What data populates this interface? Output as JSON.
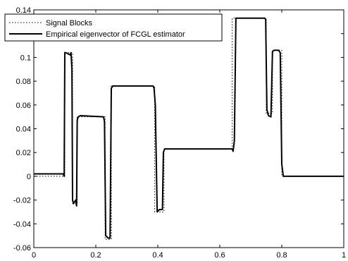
{
  "chart_data": {
    "type": "line",
    "title": "",
    "xlabel": "",
    "ylabel": "",
    "xlim": [
      0,
      1
    ],
    "ylim": [
      -0.06,
      0.14
    ],
    "x_ticks": [
      0,
      0.2,
      0.4,
      0.6,
      0.8,
      1
    ],
    "x_tick_labels": [
      "0",
      "0.2",
      "0.4",
      "0.6",
      "0.8",
      "1"
    ],
    "y_ticks": [
      -0.06,
      -0.04,
      -0.02,
      0,
      0.02,
      0.04,
      0.06,
      0.08,
      0.1,
      0.12,
      0.14
    ],
    "y_tick_labels": [
      "-0.06",
      "-0.04",
      "-0.02",
      "0",
      "0.02",
      "0.04",
      "0.06",
      "0.08",
      "0.1",
      "0.12",
      "0.14"
    ],
    "grid": false,
    "legend_position": "top-left",
    "series": [
      {
        "name": "Signal Blocks",
        "style": "dotted",
        "color": "#000000",
        "x": [
          0,
          0.1,
          0.1,
          0.125,
          0.125,
          0.14,
          0.14,
          0.23,
          0.23,
          0.25,
          0.25,
          0.39,
          0.39,
          0.42,
          0.42,
          0.64,
          0.64,
          0.75,
          0.75,
          0.77,
          0.77,
          0.8,
          0.8,
          1
        ],
        "y": [
          0,
          0,
          0.104,
          0.104,
          -0.023,
          -0.023,
          0.05,
          0.05,
          -0.053,
          -0.053,
          0.076,
          0.076,
          -0.03,
          -0.03,
          0.023,
          0.023,
          0.133,
          0.133,
          0.053,
          0.053,
          0.106,
          0.106,
          0,
          0
        ]
      },
      {
        "name": "Empirical eigenvector of FCGL estimator",
        "style": "solid",
        "color": "#000000",
        "x": [
          0,
          0.095,
          0.098,
          0.1,
          0.103,
          0.118,
          0.12,
          0.123,
          0.125,
          0.128,
          0.135,
          0.138,
          0.14,
          0.143,
          0.15,
          0.225,
          0.228,
          0.232,
          0.24,
          0.246,
          0.25,
          0.255,
          0.385,
          0.388,
          0.392,
          0.398,
          0.405,
          0.415,
          0.418,
          0.422,
          0.64,
          0.643,
          0.647,
          0.652,
          0.745,
          0.748,
          0.752,
          0.757,
          0.765,
          0.77,
          0.775,
          0.79,
          0.795,
          0.8,
          0.805,
          0.81,
          1
        ],
        "y": [
          0.002,
          0.002,
          0.0,
          0.104,
          0.104,
          0.102,
          0.104,
          0.09,
          -0.02,
          -0.023,
          -0.02,
          -0.025,
          0.047,
          0.05,
          0.051,
          0.05,
          0.046,
          -0.05,
          -0.052,
          -0.052,
          0.074,
          0.076,
          0.076,
          0.074,
          0.06,
          -0.03,
          -0.028,
          -0.028,
          0.02,
          0.023,
          0.023,
          0.021,
          0.03,
          0.133,
          0.133,
          0.132,
          0.056,
          0.051,
          0.05,
          0.105,
          0.106,
          0.106,
          0.104,
          0.01,
          0.0,
          0.0,
          0.0
        ]
      }
    ]
  }
}
